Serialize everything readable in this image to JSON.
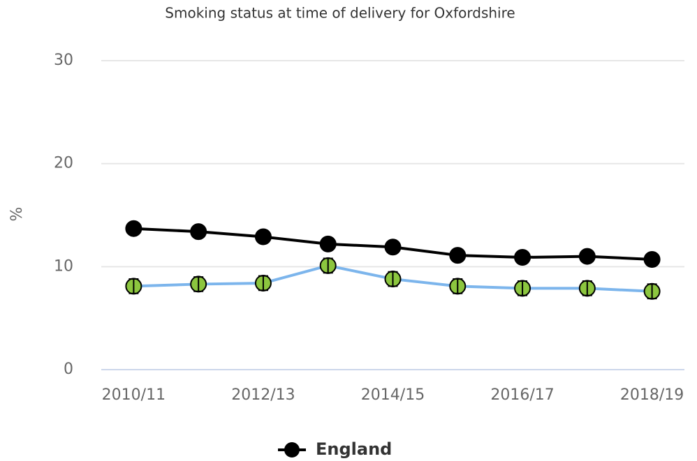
{
  "chart_data": {
    "type": "line",
    "title": "Smoking status at time of delivery for Oxfordshire",
    "y_label": "%",
    "categories": [
      "2010/11",
      null,
      "2012/13",
      null,
      "2014/15",
      null,
      "2016/17",
      null,
      "2018/19"
    ],
    "series": [
      {
        "color": "#7cb5ec",
        "marker_color": "#8cc63f",
        "values": [
          8.1,
          8.3,
          8.4,
          10.1,
          8.8,
          8.1,
          7.9,
          7.9,
          7.6
        ],
        "errors": [
          0.7,
          0.7,
          0.7,
          0.7,
          0.7,
          0.7,
          0.7,
          0.7,
          0.7
        ]
      },
      {
        "name": "England",
        "color": "#000000",
        "marker_color": "#000000",
        "values": [
          13.7,
          13.4,
          12.9,
          12.2,
          11.9,
          11.1,
          10.9,
          11.0,
          10.7
        ]
      }
    ],
    "ylim": [
      0,
      30
    ],
    "yticks": [
      0,
      10,
      20,
      30
    ],
    "grid": true,
    "legend": "bottom"
  }
}
